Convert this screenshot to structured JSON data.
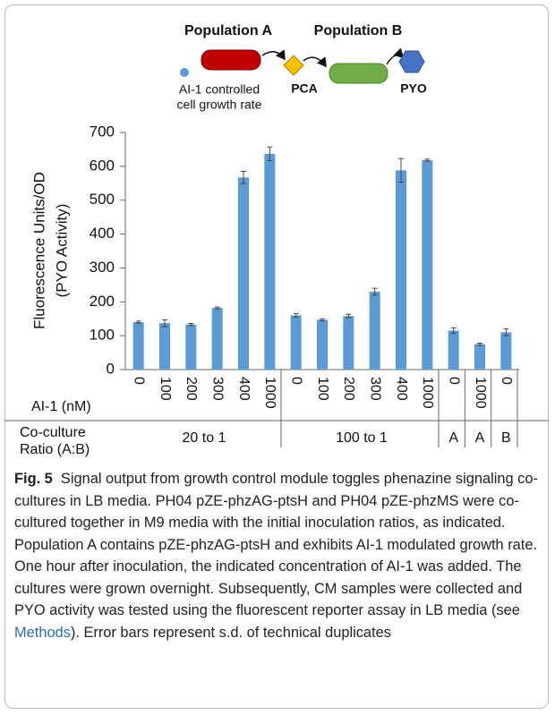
{
  "diagram": {
    "population_a": "Population A",
    "population_b": "Population B",
    "ai1_note": [
      "AI-1 controlled",
      "cell growth rate"
    ],
    "pca": "PCA",
    "pyo": "PYO"
  },
  "chart_data": {
    "type": "bar",
    "y_label": [
      "Fluorescence Units/OD",
      "(PYO Activity)"
    ],
    "row_labels": {
      "ai1": "AI-1 (nM)",
      "ratio": [
        "Co-culture",
        "Ratio (A:B)"
      ]
    },
    "categories": [
      "0",
      "100",
      "200",
      "300",
      "400",
      "1000",
      "0",
      "100",
      "200",
      "300",
      "400",
      "1000",
      "0",
      "1000",
      "0"
    ],
    "groups": [
      {
        "label": "20 to 1",
        "size": 6
      },
      {
        "label": "100 to 1",
        "size": 6
      },
      {
        "label": "A",
        "size": 1
      },
      {
        "label": "A",
        "size": 1
      },
      {
        "label": "B",
        "size": 1
      }
    ],
    "series": [
      {
        "color": "#5b9bd5",
        "values": [
          140,
          137,
          133,
          182,
          567,
          637,
          160,
          147,
          158,
          230,
          588,
          618,
          115,
          75,
          110
        ],
        "errors": [
          3,
          10,
          3,
          3,
          18,
          20,
          5,
          3,
          5,
          10,
          35,
          3,
          8,
          3,
          10
        ]
      }
    ],
    "ylim": [
      0,
      700
    ],
    "yticks": [
      0,
      100,
      200,
      300,
      400,
      500,
      600,
      700
    ]
  },
  "caption": {
    "label": "Fig. 5",
    "text_before": "Signal output from growth control module toggles phenazine signaling co-cultures in LB media. PH04 pZE-phzAG-ptsH and PH04 pZE-phzMS were co-cultured together in M9 media with the initial inoculation ratios, as indicated. Population A contains pZE-phzAG-ptsH and exhibits AI-1 modulated growth rate. One hour after inoculation, the indicated concentration of AI-1 was added. The cultures were grown overnight. Subsequently, CM samples were collected and PYO activity was tested using the fluorescent reporter assay in LB media (see ",
    "link": "Methods",
    "text_after": "). Error bars represent s.d. of technical duplicates"
  }
}
